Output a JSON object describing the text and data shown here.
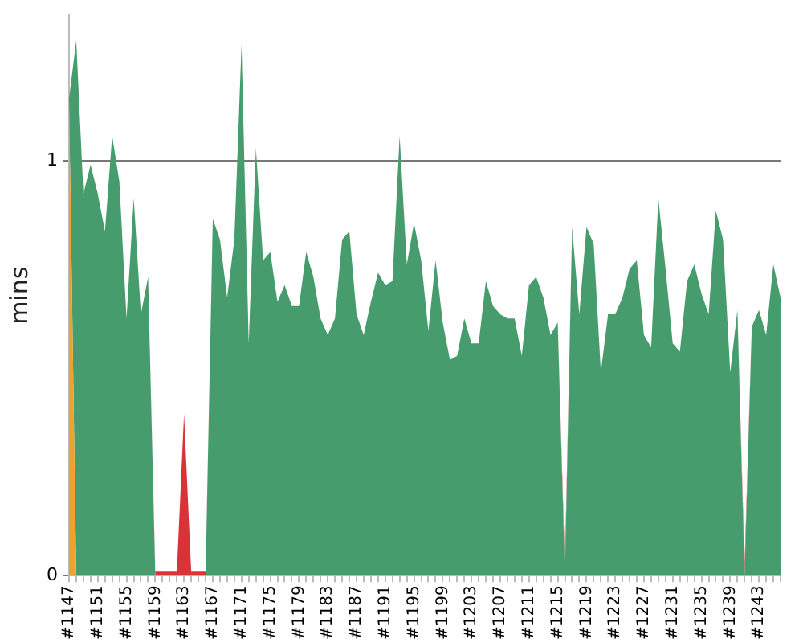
{
  "chart_data": {
    "type": "area",
    "ylabel": "mins",
    "stacked": true,
    "grid": "y",
    "marker": "none",
    "categories": [
      "#1147",
      null,
      null,
      null,
      "#1151",
      null,
      null,
      null,
      "#1155",
      null,
      null,
      null,
      "#1159",
      null,
      null,
      null,
      "#1163",
      null,
      null,
      null,
      "#1167",
      null,
      null,
      null,
      "#1171",
      null,
      null,
      null,
      "#1175",
      null,
      null,
      null,
      "#1179",
      null,
      null,
      null,
      "#1183",
      null,
      null,
      null,
      "#1187",
      null,
      null,
      null,
      "#1191",
      null,
      null,
      null,
      "#1195",
      null,
      null,
      null,
      "#1199",
      null,
      null,
      null,
      "#1203",
      null,
      null,
      null,
      "#1207",
      null,
      null,
      null,
      "#1211",
      null,
      null,
      null,
      "#1215",
      null,
      null,
      null,
      "#1219",
      null,
      null,
      null,
      "#1223",
      null,
      null,
      null,
      "#1227",
      null,
      null,
      null,
      "#1231",
      null,
      null,
      null,
      "#1235",
      null,
      null,
      null,
      "#1239",
      null,
      null,
      null,
      "#1243",
      null,
      null,
      null
    ],
    "ylim": [
      0,
      1.35
    ],
    "yticks": [
      0,
      1
    ],
    "series": [
      {
        "color": "#f0a030",
        "values": [
          1.15,
          0,
          null,
          null,
          null,
          null,
          null,
          null,
          null,
          null,
          null,
          null,
          null,
          null,
          null,
          null,
          null,
          null,
          null,
          null,
          null,
          null,
          null,
          null,
          null,
          null,
          null,
          null,
          null,
          null,
          null,
          null,
          null,
          null,
          null,
          null,
          null,
          null,
          null,
          null,
          null,
          null,
          null,
          null,
          null,
          null,
          null,
          null,
          null,
          null,
          null,
          null,
          null,
          null,
          null,
          null,
          null,
          null,
          null,
          null,
          null,
          null,
          null,
          null,
          null,
          null,
          null,
          null,
          null,
          null,
          null,
          null,
          null,
          null,
          null,
          null,
          null,
          null,
          null,
          null,
          null,
          null,
          null,
          null,
          null,
          null,
          null,
          null,
          null,
          null,
          null,
          null,
          null,
          null,
          null,
          null,
          null,
          null,
          null,
          null
        ]
      },
      {
        "color": "#469c6d",
        "values": [
          0,
          1.29,
          0.92,
          0.99,
          0.92,
          0.83,
          1.06,
          0.95,
          0.62,
          0.91,
          0.63,
          0.72,
          0,
          0,
          0,
          0,
          0,
          0,
          0,
          0,
          0.86,
          0.81,
          0.67,
          0.81,
          1.28,
          0.56,
          1.03,
          0.76,
          0.78,
          0.66,
          0.7,
          0.65,
          0.65,
          0.78,
          0.72,
          0.62,
          0.58,
          0.62,
          0.81,
          0.83,
          0.63,
          0.58,
          0.66,
          0.73,
          0.7,
          0.71,
          1.06,
          0.75,
          0.85,
          0.76,
          0.59,
          0.76,
          0.61,
          0.52,
          0.53,
          0.62,
          0.56,
          0.56,
          0.71,
          0.65,
          0.63,
          0.62,
          0.62,
          0.53,
          0.7,
          0.72,
          0.67,
          0.58,
          0.61,
          0,
          0.84,
          0.63,
          0.84,
          0.8,
          0.49,
          0.63,
          0.63,
          0.67,
          0.74,
          0.76,
          0.58,
          0.55,
          0.91,
          0.74,
          0.56,
          0.54,
          0.71,
          0.75,
          0.68,
          0.63,
          0.88,
          0.81,
          0.49,
          0.64,
          0,
          0.6,
          0.64,
          0.58,
          0.75,
          0.67
        ]
      },
      {
        "color": "#d9333a",
        "values": [
          null,
          null,
          null,
          null,
          null,
          null,
          null,
          null,
          null,
          null,
          null,
          0,
          0.01,
          0.01,
          0.01,
          0.01,
          0.39,
          0.01,
          0.01,
          0.01,
          0,
          null,
          null,
          null,
          null,
          null,
          null,
          null,
          null,
          null,
          null,
          null,
          null,
          null,
          null,
          null,
          null,
          null,
          null,
          null,
          null,
          null,
          null,
          null,
          null,
          null,
          null,
          null,
          null,
          null,
          null,
          null,
          null,
          null,
          null,
          null,
          null,
          null,
          null,
          null,
          null,
          null,
          null,
          null,
          null,
          null,
          null,
          null,
          0,
          0.03,
          0,
          null,
          null,
          null,
          null,
          null,
          null,
          null,
          null,
          null,
          null,
          null,
          null,
          null,
          null,
          null,
          null,
          null,
          null,
          null,
          null,
          null,
          null,
          0,
          0.03,
          0,
          null,
          null,
          null,
          null
        ]
      }
    ]
  }
}
